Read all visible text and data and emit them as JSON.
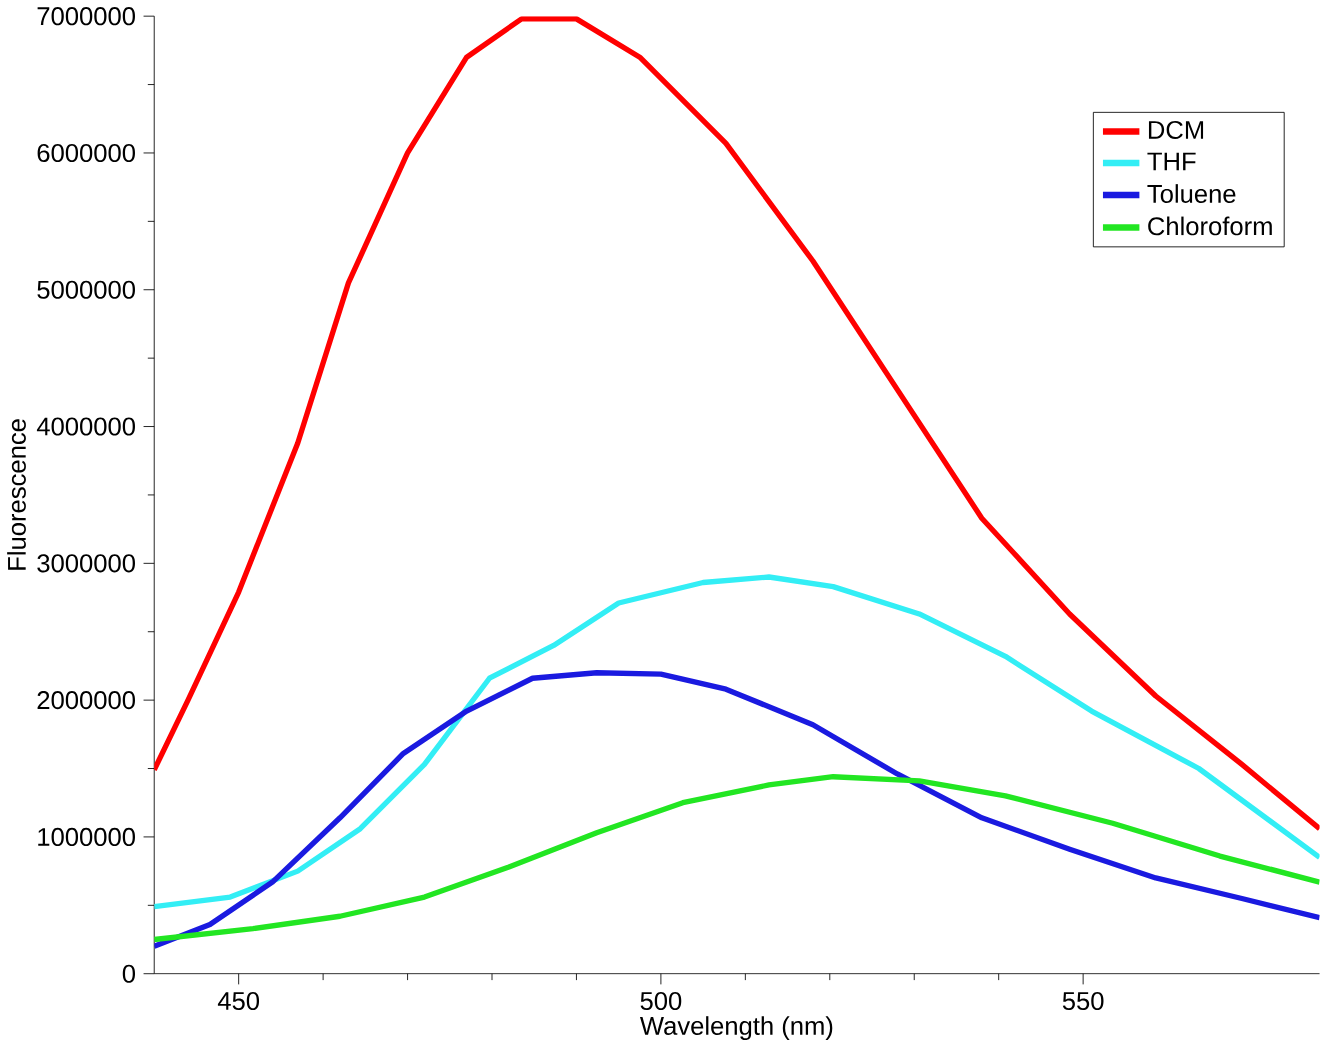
{
  "chart_data": {
    "type": "line",
    "xlabel": "Wavelength (nm)",
    "ylabel": "Fluorescence",
    "xlim": [
      440,
      578
    ],
    "ylim": [
      0,
      7000000
    ],
    "xticks": [
      450,
      500,
      550
    ],
    "yticks": [
      0,
      1000000,
      2000000,
      3000000,
      4000000,
      5000000,
      6000000,
      7000000
    ],
    "grid": false,
    "legend": "top right",
    "marker": "none",
    "line_style": "solid",
    "series": [
      {
        "name": "DCM",
        "color": "#ff0000",
        "x": [
          440,
          444,
          450,
          457,
          463,
          470,
          477,
          483.5,
          490,
          497.5,
          507.7,
          518,
          528,
          538,
          548.4,
          558.6,
          568.8,
          578
        ],
        "values": [
          1490000,
          2000000,
          2790000,
          3880000,
          5050000,
          6000000,
          6700000,
          6980000,
          6980000,
          6700000,
          6070000,
          5210000,
          4270000,
          3330000,
          2630000,
          2030000,
          1530000,
          1060000
        ]
      },
      {
        "name": "THF",
        "color": "#33eef5",
        "x": [
          440,
          449,
          457,
          464.4,
          472,
          479.7,
          487.3,
          495,
          505,
          512.8,
          520.4,
          530.6,
          540.8,
          551,
          563.7,
          578
        ],
        "values": [
          490000,
          560000,
          750000,
          1060000,
          1530000,
          2160000,
          2400000,
          2710000,
          2860000,
          2900000,
          2830000,
          2630000,
          2320000,
          1920000,
          1500000,
          850000
        ]
      },
      {
        "name": "Toluene",
        "color": "#1a1ae0",
        "x": [
          440,
          446.6,
          454,
          462,
          469.5,
          477,
          484.8,
          492.4,
          500,
          507.7,
          518,
          528,
          538,
          548.4,
          558.6,
          568.8,
          578
        ],
        "values": [
          200000,
          360000,
          670000,
          1140000,
          1610000,
          1920000,
          2160000,
          2200000,
          2190000,
          2080000,
          1820000,
          1460000,
          1140000,
          910000,
          700000,
          550000,
          410000
        ]
      },
      {
        "name": "Chloroform",
        "color": "#22e622",
        "x": [
          440,
          451.7,
          462,
          472,
          482,
          492.4,
          502.6,
          512.8,
          520.4,
          530.6,
          540.8,
          553.5,
          566.2,
          578
        ],
        "values": [
          250000,
          330000,
          420000,
          560000,
          780000,
          1030000,
          1250000,
          1380000,
          1440000,
          1410000,
          1300000,
          1100000,
          860000,
          670000
        ]
      }
    ]
  }
}
